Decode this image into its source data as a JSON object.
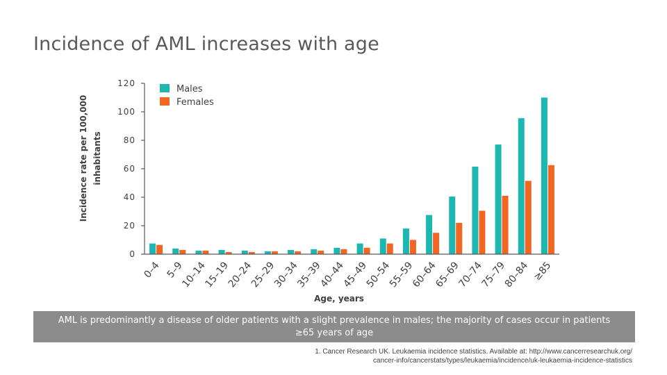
{
  "slide": {
    "title": "Incidence of AML increases with age",
    "banner": "AML is predominantly a disease of older patients with a slight prevalence in males; the majority of cases occur in patients ≥65 years of age",
    "source_line1": "1. Cancer Research UK. Leukaemia incidence statistics. Available at: http://www.cancerresearchuk.org/",
    "source_line2": "cancer-info/cancerstats/types/leukaemia/incidence/uk-leukaemia-incidence-statistics"
  },
  "colors": {
    "males": "#1bb7b0",
    "females": "#f26522",
    "axis": "#595959",
    "banner": "#8c8c8c"
  },
  "chart_data": {
    "type": "bar",
    "title": "",
    "xlabel": "Age, years",
    "ylabel": "Incidence rate per 100,000 inhabitants",
    "ylim": [
      0,
      120
    ],
    "yticks": [
      0,
      20,
      40,
      60,
      80,
      100,
      120
    ],
    "grid": false,
    "legend": "top-left",
    "categories": [
      "0–4",
      "5–9",
      "10–14",
      "15–19",
      "20–24",
      "25–29",
      "30–34",
      "35–39",
      "40–44",
      "45–49",
      "50–54",
      "55–59",
      "60–64",
      "65–69",
      "70–74",
      "75–79",
      "80–84",
      "≥85"
    ],
    "series": [
      {
        "name": "Males",
        "values": [
          7.5,
          4,
          2.5,
          3,
          2.5,
          2,
          3,
          3.5,
          4.5,
          7.5,
          11,
          18,
          27.5,
          40.5,
          61.5,
          77,
          95.5,
          110
        ]
      },
      {
        "name": "Females",
        "values": [
          6.5,
          3,
          2.5,
          1.5,
          1.5,
          2,
          2,
          2.5,
          3.5,
          4.5,
          7.5,
          10,
          15,
          22,
          30.5,
          41,
          51.5,
          62.5
        ]
      }
    ]
  }
}
